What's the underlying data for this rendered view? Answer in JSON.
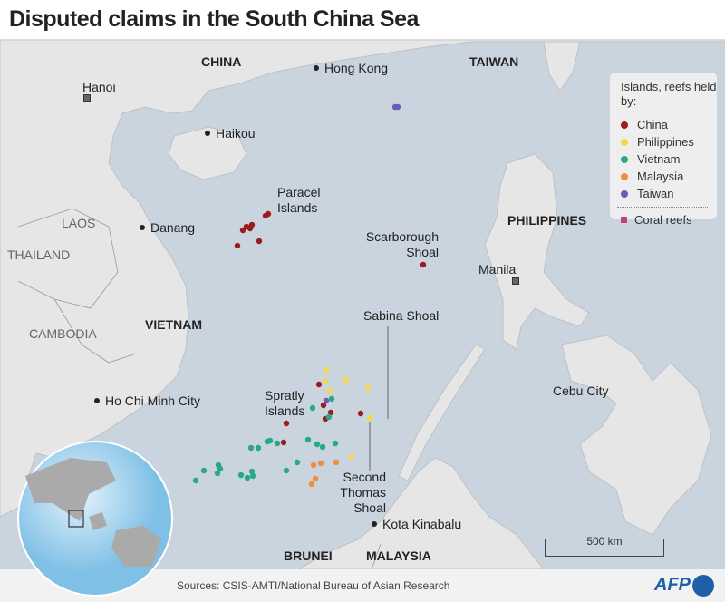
{
  "title": "Disputed claims in the South China Sea",
  "legend": {
    "heading": "Islands, reefs held by:",
    "items": [
      {
        "label": "China",
        "color": "#9b1c1f"
      },
      {
        "label": "Philippines",
        "color": "#f5d84a"
      },
      {
        "label": "Vietnam",
        "color": "#27a88a"
      },
      {
        "label": "Malaysia",
        "color": "#ef8f3e"
      },
      {
        "label": "Taiwan",
        "color": "#6a5bb5"
      }
    ],
    "reefs_label": "Coral reefs",
    "reefs_color": "#c63f82"
  },
  "countries": {
    "china": "CHINA",
    "taiwan": "TAIWAN",
    "philippines": "PHILIPPINES",
    "vietnam": "VIETNAM",
    "laos": "LAOS",
    "thailand": "THAILAND",
    "cambodia": "CAMBODIA",
    "brunei": "BRUNEI",
    "malaysia": "MALAYSIA"
  },
  "cities": {
    "hanoi": "Hanoi",
    "hong_kong": "Hong Kong",
    "haikou": "Haikou",
    "danang": "Danang",
    "hcmc": "Ho Chi Minh City",
    "manila": "Manila",
    "cebu": "Cebu City",
    "kota_kinabalu": "Kota Kinabalu"
  },
  "features": {
    "paracel": "Paracel Islands",
    "scarborough": "Scarborough Shoal",
    "sabina": "Sabina Shoal",
    "spratly": "Spratly Islands",
    "second_thomas": "Second Thomas Shoal"
  },
  "scale": "500 km",
  "sources": "Sources: CSIS-AMTI/National Bureau of Asian Research",
  "credit": "AFP",
  "colors": {
    "sea": "#c9d4df",
    "land": "#e6e6e6"
  }
}
